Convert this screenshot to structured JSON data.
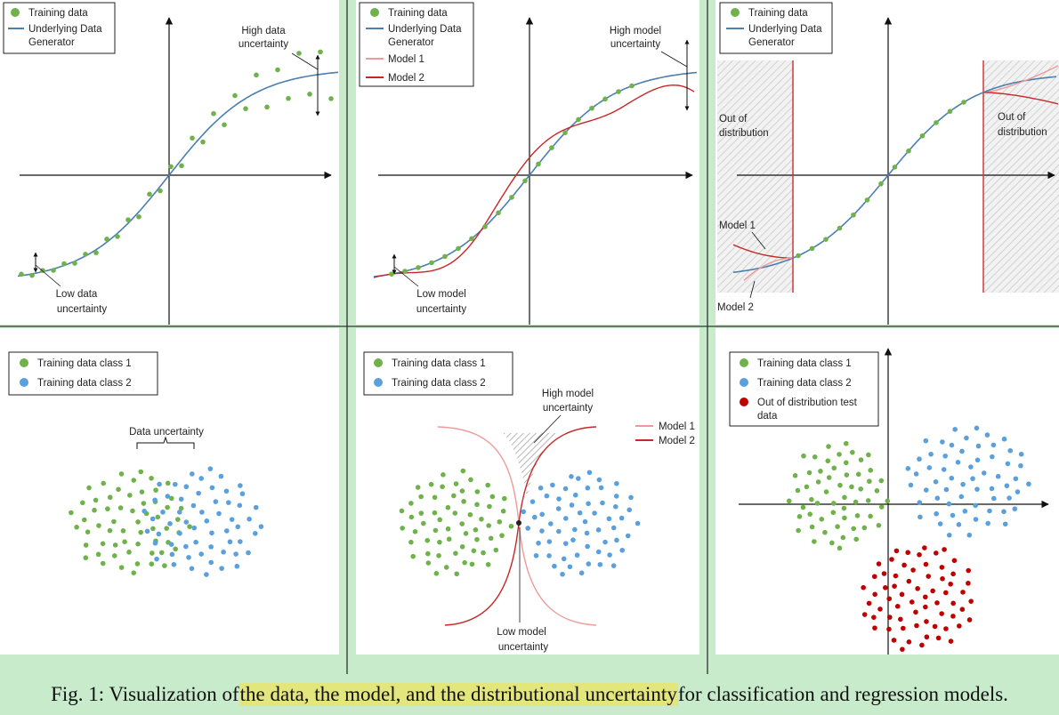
{
  "caption": {
    "prefix": "Fig. 1: Visualization of ",
    "highlight": "the data, the model, and the distributional uncertainty",
    "suffix": " for classification and regression models."
  },
  "colors": {
    "training": "#6fb24a",
    "class2": "#5aa0dc",
    "generator": "#4a7fb0",
    "model1": "#ee9a9a",
    "model2": "#c62828",
    "ood": "#c00000",
    "background": "#c8ebcb"
  },
  "panels": {
    "p1": {
      "legend": [
        "Training data",
        "Underlying Data",
        "Generator"
      ],
      "annotations": [
        "High data",
        "uncertainty",
        "Low data",
        "uncertainty"
      ]
    },
    "p2": {
      "legend": [
        "Training data",
        "Underlying Data",
        "Generator",
        "Model 1",
        "Model 2"
      ],
      "annotations": [
        "High model",
        "uncertainty",
        "Low model",
        "uncertainty"
      ]
    },
    "p3": {
      "legend": [
        "Training data",
        "Underlying Data",
        "Generator"
      ],
      "annotations": [
        "Out of",
        "distribution",
        "Out of",
        "distribution",
        "Model 1",
        "Model 2"
      ]
    },
    "p4": {
      "legend": [
        "Training data class 1",
        "Training data class 2"
      ],
      "annotations": [
        "Data uncertainty"
      ]
    },
    "p5": {
      "legend": [
        "Training data class 1",
        "Training data class 2"
      ],
      "annotations": [
        "High model",
        "uncertainty",
        "Low model",
        "uncertainty"
      ],
      "side_legend": [
        "Model 1",
        "Model 2"
      ]
    },
    "p6": {
      "legend": [
        "Training data class 1",
        "Training data class 2",
        "Out of distribution test",
        "data"
      ]
    }
  }
}
